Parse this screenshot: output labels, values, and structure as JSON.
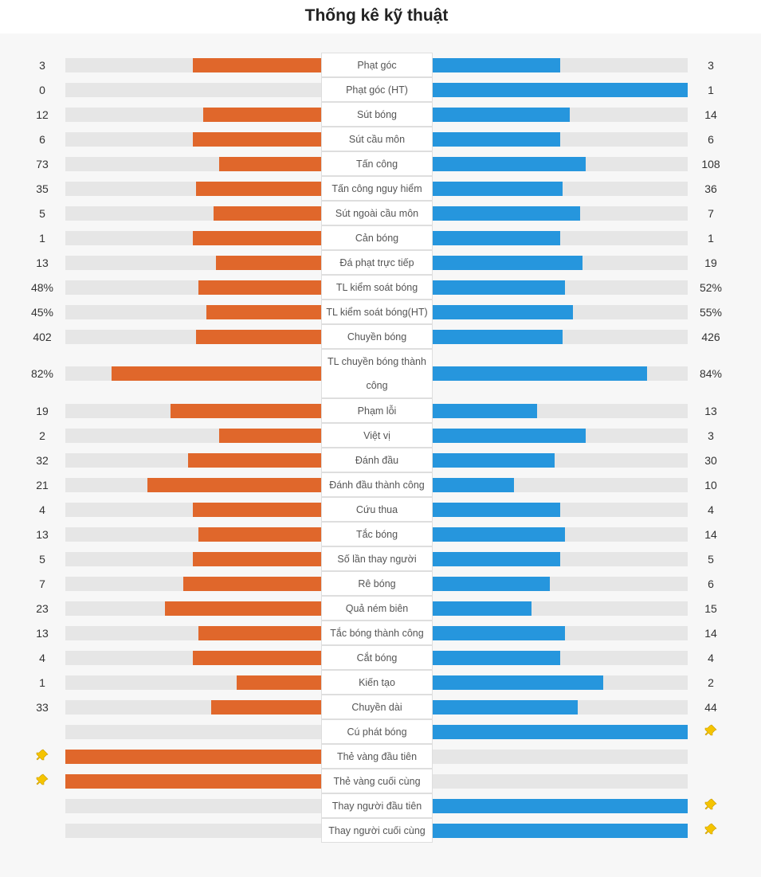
{
  "title": "Thống kê kỹ thuật",
  "colors": {
    "home": "#e0672b",
    "away": "#2696dd",
    "track": "#e6e6e6",
    "pin": "#f5c400"
  },
  "stats": [
    {
      "label": "Phạt góc",
      "home": "3",
      "away": "3",
      "home_share": 0.5,
      "away_share": 0.5
    },
    {
      "label": "Phạt góc (HT)",
      "home": "0",
      "away": "1",
      "home_share": 0,
      "away_share": 1
    },
    {
      "label": "Sút bóng",
      "home": "12",
      "away": "14",
      "home_share": 0.46,
      "away_share": 0.54
    },
    {
      "label": "Sút cầu môn",
      "home": "6",
      "away": "6",
      "home_share": 0.5,
      "away_share": 0.5
    },
    {
      "label": "Tấn công",
      "home": "73",
      "away": "108",
      "home_share": 0.4,
      "away_share": 0.6
    },
    {
      "label": "Tấn công nguy hiểm",
      "home": "35",
      "away": "36",
      "home_share": 0.49,
      "away_share": 0.51
    },
    {
      "label": "Sút ngoài cầu môn",
      "home": "5",
      "away": "7",
      "home_share": 0.42,
      "away_share": 0.58
    },
    {
      "label": "Cản bóng",
      "home": "1",
      "away": "1",
      "home_share": 0.5,
      "away_share": 0.5
    },
    {
      "label": "Đá phạt trực tiếp",
      "home": "13",
      "away": "19",
      "home_share": 0.41,
      "away_share": 0.59
    },
    {
      "label": "TL kiểm soát bóng",
      "home": "48%",
      "away": "52%",
      "home_share": 0.48,
      "away_share": 0.52
    },
    {
      "label": "TL kiểm soát bóng(HT)",
      "home": "45%",
      "away": "55%",
      "home_share": 0.45,
      "away_share": 0.55
    },
    {
      "label": "Chuyền bóng",
      "home": "402",
      "away": "426",
      "home_share": 0.49,
      "away_share": 0.51
    },
    {
      "label": "TL chuyền bóng thành công",
      "home": "82%",
      "away": "84%",
      "home_share": 0.82,
      "away_share": 0.84,
      "tall": true
    },
    {
      "label": "Phạm lỗi",
      "home": "19",
      "away": "13",
      "home_share": 0.59,
      "away_share": 0.41
    },
    {
      "label": "Việt vị",
      "home": "2",
      "away": "3",
      "home_share": 0.4,
      "away_share": 0.6
    },
    {
      "label": "Đánh đầu",
      "home": "32",
      "away": "30",
      "home_share": 0.52,
      "away_share": 0.48
    },
    {
      "label": "Đánh đầu thành công",
      "home": "21",
      "away": "10",
      "home_share": 0.68,
      "away_share": 0.32
    },
    {
      "label": "Cứu thua",
      "home": "4",
      "away": "4",
      "home_share": 0.5,
      "away_share": 0.5
    },
    {
      "label": "Tắc bóng",
      "home": "13",
      "away": "14",
      "home_share": 0.48,
      "away_share": 0.52
    },
    {
      "label": "Số lần thay người",
      "home": "5",
      "away": "5",
      "home_share": 0.5,
      "away_share": 0.5
    },
    {
      "label": "Rê bóng",
      "home": "7",
      "away": "6",
      "home_share": 0.54,
      "away_share": 0.46
    },
    {
      "label": "Quả ném biên",
      "home": "23",
      "away": "15",
      "home_share": 0.61,
      "away_share": 0.39
    },
    {
      "label": "Tắc bóng thành công",
      "home": "13",
      "away": "14",
      "home_share": 0.48,
      "away_share": 0.52
    },
    {
      "label": "Cắt bóng",
      "home": "4",
      "away": "4",
      "home_share": 0.5,
      "away_share": 0.5
    },
    {
      "label": "Kiến tạo",
      "home": "1",
      "away": "2",
      "home_share": 0.33,
      "away_share": 0.67
    },
    {
      "label": "Chuyền dài",
      "home": "33",
      "away": "44",
      "home_share": 0.43,
      "away_share": 0.57
    },
    {
      "label": "Cú phát bóng",
      "home": "",
      "away": "",
      "home_share": 0,
      "away_share": 1,
      "pin": "away"
    },
    {
      "label": "Thẻ vàng đầu tiên",
      "home": "",
      "away": "",
      "home_share": 1,
      "away_share": 0,
      "pin": "home"
    },
    {
      "label": "Thẻ vàng cuối cùng",
      "home": "",
      "away": "",
      "home_share": 1,
      "away_share": 0,
      "pin": "home"
    },
    {
      "label": "Thay người đầu tiên",
      "home": "",
      "away": "",
      "home_share": 0,
      "away_share": 1,
      "pin": "away"
    },
    {
      "label": "Thay người cuối cùng",
      "home": "",
      "away": "",
      "home_share": 0,
      "away_share": 1,
      "pin": "away"
    }
  ]
}
